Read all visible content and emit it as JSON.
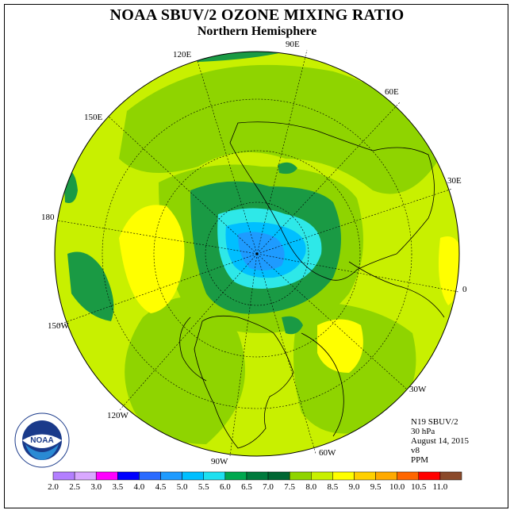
{
  "title": "NOAA SBUV/2 OZONE MIXING RATIO",
  "subtitle": "Northern Hemisphere",
  "longitude_labels": {
    "e90": "90E",
    "e120": "120E",
    "e60": "60E",
    "e150": "150E",
    "e30": "30E",
    "lon180": "180",
    "lon0": "0",
    "w150": "150W",
    "w30": "30W",
    "w120": "120W",
    "w60": "60W",
    "w90": "90W"
  },
  "info": {
    "instrument": "N19 SBUV/2",
    "pressure": "30 hPa",
    "date": "August 14, 2015",
    "version": "v8",
    "units": "PPM"
  },
  "logo": {
    "text": "NOAA",
    "ring_text": "NATIONAL OCEANIC AND ATMOSPHERIC ADMINISTRATION · U.S. DEPARTMENT OF COMMERCE"
  },
  "colorbar": {
    "ticks": [
      "2.0",
      "2.5",
      "3.0",
      "3.5",
      "4.0",
      "4.5",
      "5.0",
      "5.5",
      "6.0",
      "6.5",
      "7.0",
      "7.5",
      "8.0",
      "8.5",
      "9.0",
      "9.5",
      "10.0",
      "10.5",
      "11.0"
    ],
    "colors": [
      "#b37fff",
      "#d9a8ff",
      "#ff00ff",
      "#0000ff",
      "#2a6bff",
      "#1e9bff",
      "#00bfff",
      "#1ee0f0",
      "#00a84f",
      "#007a3d",
      "#006633",
      "#8fd400",
      "#c8f000",
      "#ffff00",
      "#ffd000",
      "#ffaa00",
      "#ff6600",
      "#ff0000",
      "#8b4a2b"
    ]
  },
  "map": {
    "ocean_base": "#c8f000",
    "colors": {
      "c60": "#006b35",
      "c65": "#008c3f",
      "c70": "#1a9a44",
      "c75": "#8fd400",
      "c80": "#c8f000",
      "c85": "#ffff00",
      "c55": "#2ee8e8",
      "c50": "#00bfff",
      "c45": "#1e9bff"
    }
  }
}
